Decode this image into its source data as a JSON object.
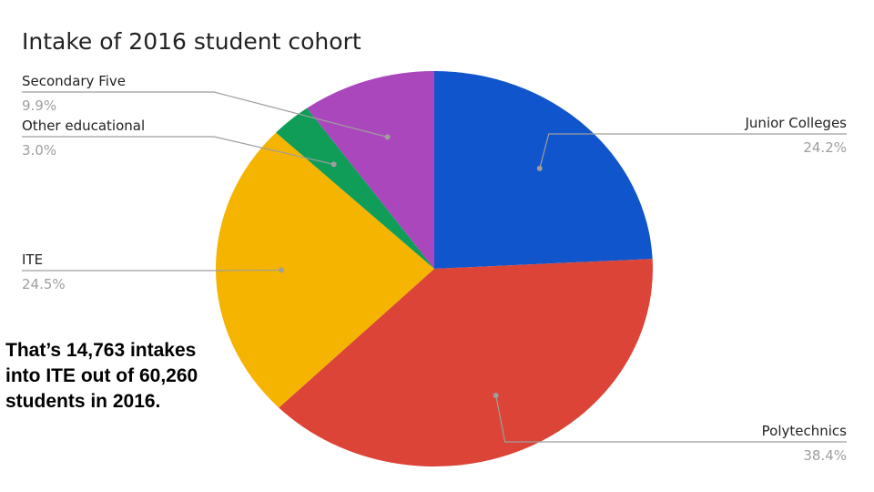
{
  "chart_data": {
    "type": "pie",
    "title": "Intake of 2016 student cohort",
    "slices": [
      {
        "name": "Junior Colleges",
        "value": 24.2,
        "pct_label": "24.2%",
        "color": "#1155cc"
      },
      {
        "name": "Polytechnics",
        "value": 38.4,
        "pct_label": "38.4%",
        "color": "#db4437"
      },
      {
        "name": "ITE",
        "value": 24.5,
        "pct_label": "24.5%",
        "color": "#f4b400"
      },
      {
        "name": "Other educational",
        "value": 3.0,
        "pct_label": "3.0%",
        "color": "#0f9d58"
      },
      {
        "name": "Secondary Five",
        "value": 9.9,
        "pct_label": "9.9%",
        "color": "#ab47bc"
      }
    ],
    "start_angle": "12 o'clock",
    "direction": "clockwise",
    "legend": "none (outside labels with leader lines)"
  },
  "note": {
    "lines": [
      "That’s 14,763 intakes",
      "into ITE out of 60,260",
      "students in 2016."
    ]
  }
}
